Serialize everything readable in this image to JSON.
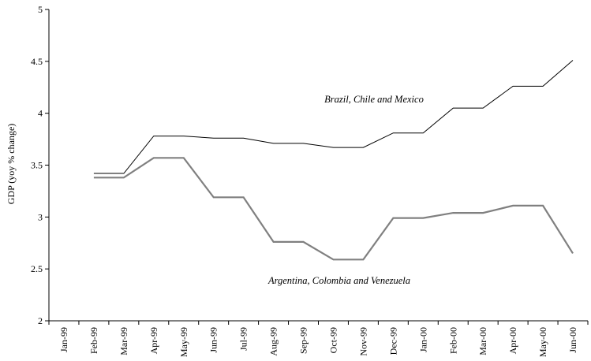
{
  "chart_data": {
    "type": "line",
    "title": "",
    "xlabel": "",
    "ylabel": "GDP (yoy % change)",
    "ylim": [
      2,
      5
    ],
    "yticks": [
      "2",
      "2.5",
      "3",
      "3.5",
      "4",
      "4.5",
      "5"
    ],
    "grid": false,
    "legend": "none",
    "categories": [
      "Jan-99",
      "Feb-99",
      "Mar-99",
      "Apr-99",
      "May-99",
      "Jun-99",
      "Jul-99",
      "Aug-99",
      "Sep-99",
      "Oct-99",
      "Nov-99",
      "Dec-99",
      "Jan-00",
      "Feb-00",
      "Mar-00",
      "Apr-00",
      "May-00",
      "Jun-00"
    ],
    "series": [
      {
        "name": "Brazil, Chile and Mexico",
        "color": "#000000",
        "values": [
          null,
          3.42,
          3.42,
          3.78,
          3.78,
          3.76,
          3.76,
          3.71,
          3.71,
          3.67,
          3.67,
          3.81,
          3.81,
          4.05,
          4.05,
          4.26,
          4.26,
          4.51
        ]
      },
      {
        "name": "Argentina, Colombia and Venezuela",
        "color": "#808080",
        "values": [
          null,
          3.38,
          3.38,
          3.57,
          3.57,
          3.19,
          3.19,
          2.76,
          2.76,
          2.59,
          2.59,
          2.99,
          2.99,
          3.04,
          3.04,
          3.11,
          3.11,
          2.65
        ]
      }
    ]
  }
}
